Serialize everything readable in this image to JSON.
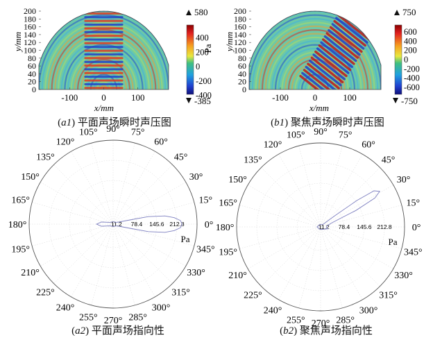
{
  "panels": {
    "a1": {
      "caption_id": "a1",
      "caption": "平面声场瞬时声压图",
      "ylabel": "y/mm",
      "xlabel": "x/mm",
      "yticks": [
        "200",
        "180",
        "160",
        "140",
        "120",
        "100",
        "80",
        "60",
        "40",
        "20",
        "0"
      ],
      "xticks": [
        "-100",
        "0",
        "100"
      ],
      "colorbar": {
        "max_label": "580",
        "min_label": "-385",
        "ticks": [
          "400",
          "200",
          "0",
          "-200",
          "-400"
        ],
        "unit": "Pa"
      }
    },
    "b1": {
      "caption_id": "b1",
      "caption": "聚焦声场瞬时声压图",
      "ylabel": "y/mm",
      "xlabel": "x/mm",
      "yticks": [
        "200",
        "180",
        "160",
        "140",
        "120",
        "100",
        "80",
        "60",
        "40",
        "20",
        "0"
      ],
      "xticks": [
        "-100",
        "0",
        "100"
      ],
      "colorbar": {
        "max_label": "750",
        "min_label": "-750",
        "ticks": [
          "600",
          "400",
          "200",
          "0",
          "-200",
          "-400",
          "-600"
        ],
        "unit": "Pa"
      }
    },
    "a2": {
      "caption_id": "a2",
      "caption": "平面声场指向性",
      "angle_labels": [
        "0°",
        "15°",
        "30°",
        "45°",
        "60°",
        "75°",
        "90°",
        "105°",
        "120°",
        "135°",
        "150°",
        "165°",
        "180°",
        "195°",
        "210°",
        "225°",
        "240°",
        "255°",
        "270°",
        "285°",
        "300°",
        "315°",
        "330°",
        "345°"
      ],
      "radial_labels": [
        "11.2",
        "78.4",
        "145.6",
        "212.8"
      ],
      "unit": "Pa"
    },
    "b2": {
      "caption_id": "b2",
      "caption": "聚焦声场指向性",
      "angle_labels": [
        "0°",
        "15°",
        "30°",
        "45°",
        "60°",
        "75°",
        "90°",
        "105°",
        "120°",
        "135°",
        "150°",
        "165°",
        "180°",
        "195°",
        "210°",
        "225°",
        "240°",
        "255°",
        "270°",
        "285°",
        "300°",
        "315°",
        "330°",
        "345°"
      ],
      "radial_labels": [
        "11.2",
        "78.4",
        "145.6",
        "212.8"
      ],
      "unit": "Pa"
    }
  },
  "chart_data": [
    {
      "type": "heatmap",
      "panel": "a1",
      "title": "平面声场瞬时声压图",
      "xlabel": "x/mm",
      "ylabel": "y/mm",
      "xlim": [
        -190,
        190
      ],
      "ylim": [
        0,
        200
      ],
      "clim": [
        -385,
        580
      ],
      "colorbar_unit": "Pa",
      "source": {
        "x": [
          -60,
          60
        ],
        "direction_deg": 90
      },
      "wavelength_mm": 19
    },
    {
      "type": "heatmap",
      "panel": "b1",
      "title": "聚焦声场瞬时声压图",
      "xlabel": "x/mm",
      "ylabel": "y/mm",
      "xlim": [
        -190,
        190
      ],
      "ylim": [
        0,
        200
      ],
      "clim": [
        -750,
        750
      ],
      "colorbar_unit": "Pa",
      "source": {
        "x": [
          -60,
          60
        ],
        "direction_deg": 55
      },
      "wavelength_mm": 19
    },
    {
      "type": "line",
      "subtype": "polar",
      "panel": "a2",
      "title": "平面声场指向性",
      "radial_ticks": [
        11.2,
        78.4,
        145.6,
        212.8
      ],
      "rmax": 280,
      "unit": "Pa",
      "series": [
        {
          "theta_deg": [
            0,
            3,
            6,
            9,
            12,
            15,
            20,
            30,
            60,
            90,
            120,
            150,
            170,
            180,
            190,
            210,
            240,
            270,
            300,
            330,
            340,
            345,
            348,
            351,
            354,
            357,
            360
          ],
          "r": [
            230,
            225,
            205,
            175,
            120,
            45,
            20,
            12,
            8,
            8,
            8,
            12,
            40,
            55,
            40,
            12,
            8,
            8,
            8,
            12,
            20,
            45,
            120,
            175,
            205,
            225,
            230
          ]
        }
      ]
    },
    {
      "type": "line",
      "subtype": "polar",
      "panel": "b2",
      "title": "聚焦声场指向性",
      "radial_ticks": [
        11.2,
        78.4,
        145.6,
        212.8
      ],
      "rmax": 280,
      "unit": "Pa",
      "series": [
        {
          "theta_deg": [
            0,
            10,
            20,
            25,
            28,
            31,
            34,
            36,
            38,
            41,
            44,
            50,
            70,
            90,
            120,
            150,
            180,
            210,
            240,
            270,
            300,
            330,
            345,
            355,
            360
          ],
          "r": [
            20,
            22,
            40,
            130,
            205,
            230,
            215,
            150,
            60,
            25,
            15,
            10,
            8,
            8,
            8,
            8,
            12,
            8,
            8,
            8,
            10,
            15,
            25,
            20,
            20
          ]
        }
      ]
    }
  ]
}
